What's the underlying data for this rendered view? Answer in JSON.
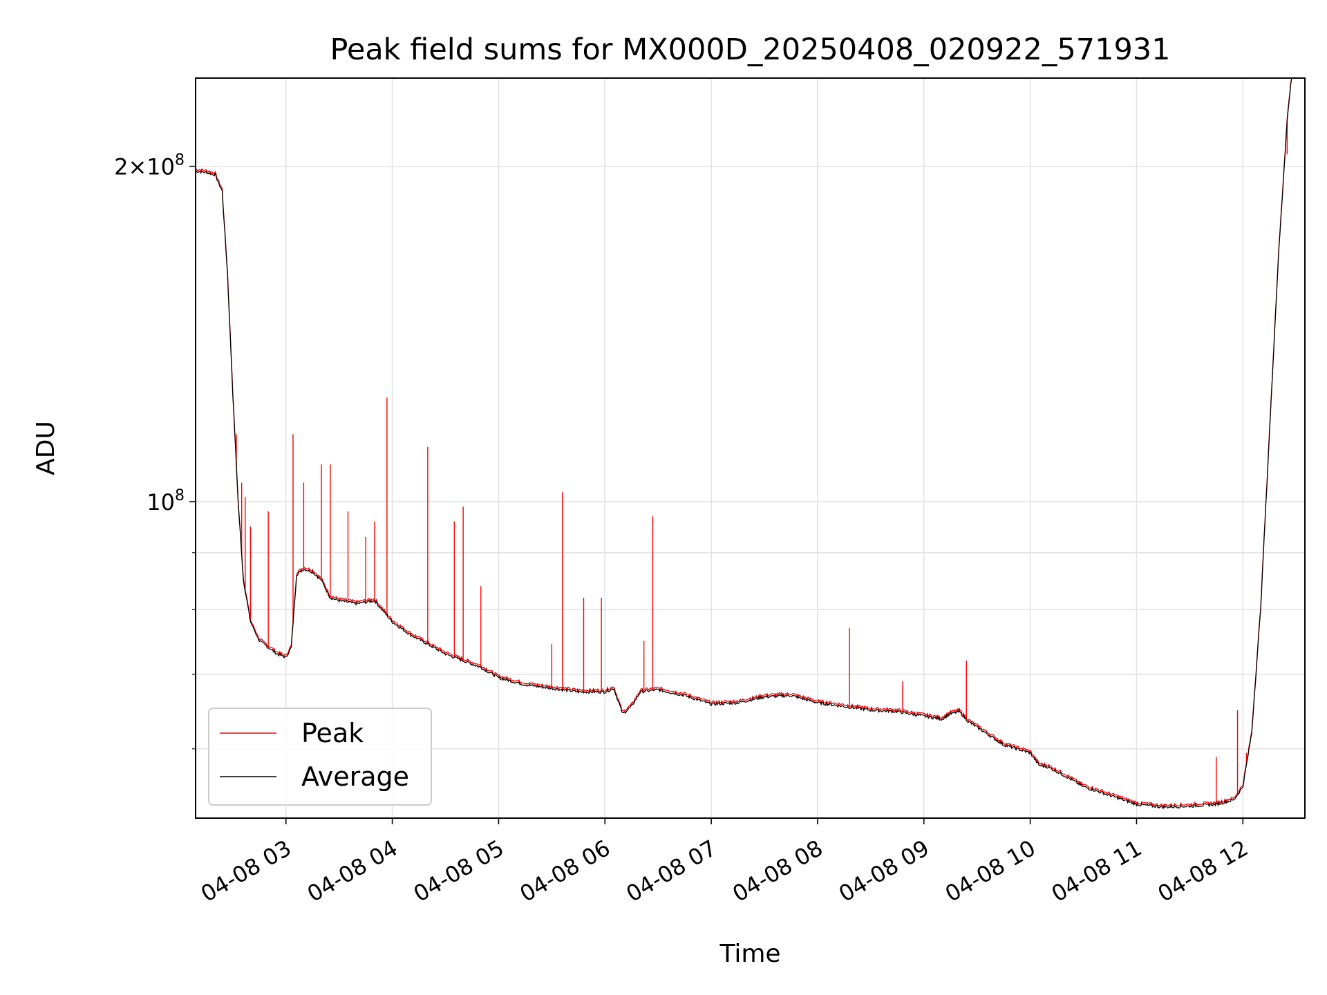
{
  "chart_data": {
    "type": "line",
    "title": "Peak field sums for MX000D_20250408_020922_571931",
    "xlabel": "Time",
    "ylabel": "ADU",
    "y_scale": "log",
    "ylim": [
      52000000,
      240000000
    ],
    "xlim": [
      "04-08 02:09",
      "04-08 12:35"
    ],
    "grid": true,
    "legend_position": "lower-left",
    "x_ticks": [
      "04-08 03",
      "04-08 04",
      "04-08 05",
      "04-08 06",
      "04-08 07",
      "04-08 08",
      "04-08 09",
      "04-08 10",
      "04-08 11",
      "04-08 12"
    ],
    "y_ticks_labeled": [
      {
        "value": 100000000,
        "base": "10",
        "exp": "8",
        "prefix": ""
      },
      {
        "value": 200000000,
        "base": "10",
        "exp": "8",
        "prefix": "2×"
      }
    ],
    "y_ticks_minor": [
      60000000,
      70000000,
      80000000,
      90000000
    ],
    "series": [
      {
        "name": "Average",
        "color": "#000000",
        "x": [
          "04-08 02:09",
          "04-08 02:15",
          "04-08 02:20",
          "04-08 02:24",
          "04-08 02:27",
          "04-08 02:30",
          "04-08 02:33",
          "04-08 02:36",
          "04-08 02:40",
          "04-08 02:45",
          "04-08 02:50",
          "04-08 02:55",
          "04-08 03:00",
          "04-08 03:03",
          "04-08 03:06",
          "04-08 03:10",
          "04-08 03:15",
          "04-08 03:20",
          "04-08 03:25",
          "04-08 03:30",
          "04-08 03:40",
          "04-08 03:50",
          "04-08 04:00",
          "04-08 04:10",
          "04-08 04:20",
          "04-08 04:30",
          "04-08 04:40",
          "04-08 04:50",
          "04-08 05:00",
          "04-08 05:15",
          "04-08 05:30",
          "04-08 05:45",
          "04-08 06:00",
          "04-08 06:05",
          "04-08 06:10",
          "04-08 06:15",
          "04-08 06:20",
          "04-08 06:30",
          "04-08 06:45",
          "04-08 07:00",
          "04-08 07:15",
          "04-08 07:30",
          "04-08 07:45",
          "04-08 08:00",
          "04-08 08:15",
          "04-08 08:30",
          "04-08 08:45",
          "04-08 09:00",
          "04-08 09:10",
          "04-08 09:15",
          "04-08 09:20",
          "04-08 09:25",
          "04-08 09:35",
          "04-08 09:45",
          "04-08 10:00",
          "04-08 10:05",
          "04-08 10:10",
          "04-08 10:20",
          "04-08 10:30",
          "04-08 10:45",
          "04-08 11:00",
          "04-08 11:15",
          "04-08 11:30",
          "04-08 11:45",
          "04-08 11:55",
          "04-08 12:00",
          "04-08 12:05",
          "04-08 12:10",
          "04-08 12:15",
          "04-08 12:20",
          "04-08 12:25",
          "04-08 12:28"
        ],
        "y": [
          198000000,
          197500000,
          196500000,
          190000000,
          160000000,
          125000000,
          100000000,
          85000000,
          78000000,
          75000000,
          74000000,
          73000000,
          72500000,
          74000000,
          86000000,
          87000000,
          86500000,
          85000000,
          82000000,
          81500000,
          81000000,
          81500000,
          78000000,
          76000000,
          74500000,
          73000000,
          72000000,
          71000000,
          69500000,
          68500000,
          68000000,
          67500000,
          67500000,
          68000000,
          64500000,
          65500000,
          67500000,
          67800000,
          67000000,
          65800000,
          66000000,
          66800000,
          67000000,
          66000000,
          65500000,
          65000000,
          64800000,
          64200000,
          63800000,
          64500000,
          64800000,
          63500000,
          62000000,
          60500000,
          59500000,
          58000000,
          57800000,
          56700000,
          55500000,
          54500000,
          53500000,
          53200000,
          53300000,
          53500000,
          54000000,
          55500000,
          62000000,
          80000000,
          115000000,
          165000000,
          220000000,
          245000000
        ]
      },
      {
        "name": "Peak",
        "color": "#ff0000",
        "x": [
          "04-08 02:30",
          "04-08 02:32",
          "04-08 02:35",
          "04-08 02:37",
          "04-08 02:40",
          "04-08 02:50",
          "04-08 03:04",
          "04-08 03:10",
          "04-08 03:20",
          "04-08 03:25",
          "04-08 03:35",
          "04-08 03:45",
          "04-08 03:50",
          "04-08 03:57",
          "04-08 04:20",
          "04-08 04:35",
          "04-08 04:40",
          "04-08 04:50",
          "04-08 05:30",
          "04-08 05:36",
          "04-08 05:48",
          "04-08 05:58",
          "04-08 06:22",
          "04-08 06:27",
          "04-08 08:18",
          "04-08 08:48",
          "04-08 09:24",
          "04-08 11:45",
          "04-08 11:57",
          "04-08 12:02",
          "04-08 12:25"
        ],
        "y": [
          125000000,
          115000000,
          104000000,
          101000000,
          95000000,
          98000000,
          115000000,
          104000000,
          108000000,
          108000000,
          98000000,
          93000000,
          96000000,
          124000000,
          112000000,
          96000000,
          99000000,
          84000000,
          74500000,
          102000000,
          82000000,
          82000000,
          75000000,
          97000000,
          77000000,
          69000000,
          72000000,
          59000000,
          65000000,
          59500000,
          205000000
        ]
      }
    ]
  }
}
